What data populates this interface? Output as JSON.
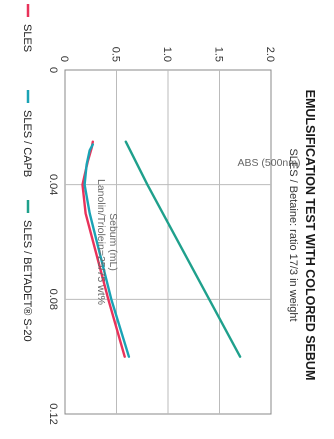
{
  "chart_data": {
    "type": "line",
    "title": "EMULSIFICATION TEST WITH COLORED SEBUM",
    "subtitle": "SLES / Betaine: ratio 17/3 in weight",
    "xlabel_lines": [
      "Sebum (mL)",
      "Lanolin/Triolein=25/75 wt%"
    ],
    "ylabel": "ABS (500nm)",
    "xlim": [
      0,
      0.12
    ],
    "ylim": [
      0,
      2.0
    ],
    "x_ticks": [
      "0",
      "0.04",
      "0.08",
      "0.12"
    ],
    "y_ticks": [
      "0",
      "0.5",
      "1.0",
      "1.5",
      "2.0"
    ],
    "grid": true,
    "legend_position": "bottom",
    "series": [
      {
        "name": "SLES",
        "color": "#e8325a",
        "x": [
          0.025,
          0.027,
          0.032,
          0.04,
          0.05,
          0.08,
          0.1
        ],
        "y": [
          0.27,
          0.26,
          0.22,
          0.17,
          0.2,
          0.42,
          0.58
        ]
      },
      {
        "name": "SLES / CAPB",
        "color": "#1aa3b5",
        "x": [
          0.026,
          0.028,
          0.033,
          0.04,
          0.05,
          0.08,
          0.1
        ],
        "y": [
          0.27,
          0.24,
          0.21,
          0.19,
          0.24,
          0.45,
          0.62
        ]
      },
      {
        "name": "SLES / BETADET® S-20",
        "color": "#1fa08c",
        "x": [
          0.025,
          0.04,
          0.08,
          0.1
        ],
        "y": [
          0.59,
          0.8,
          1.4,
          1.7
        ]
      }
    ]
  }
}
